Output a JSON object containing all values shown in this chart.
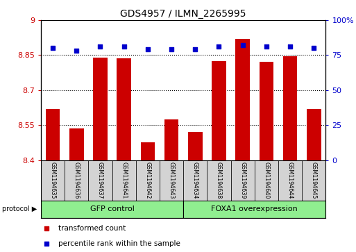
{
  "title": "GDS4957 / ILMN_2265995",
  "samples": [
    "GSM1194635",
    "GSM1194636",
    "GSM1194637",
    "GSM1194641",
    "GSM1194642",
    "GSM1194643",
    "GSM1194634",
    "GSM1194638",
    "GSM1194639",
    "GSM1194640",
    "GSM1194644",
    "GSM1194645"
  ],
  "bar_values": [
    8.62,
    8.535,
    8.84,
    8.835,
    8.475,
    8.575,
    8.52,
    8.825,
    8.92,
    8.82,
    8.845,
    8.62
  ],
  "percentile_values": [
    80,
    78,
    81,
    81,
    79,
    79,
    79,
    81,
    82,
    81,
    81,
    80
  ],
  "bar_color": "#cc0000",
  "percentile_color": "#0000cc",
  "ylim_left": [
    8.4,
    9.0
  ],
  "ylim_right": [
    0,
    100
  ],
  "yticks_left": [
    8.4,
    8.55,
    8.7,
    8.85,
    9.0
  ],
  "yticks_left_labels": [
    "8.4",
    "8.55",
    "8.7",
    "8.85",
    "9"
  ],
  "yticks_right": [
    0,
    25,
    50,
    75,
    100
  ],
  "yticks_right_labels": [
    "0",
    "25",
    "50",
    "75",
    "100%"
  ],
  "hlines": [
    8.55,
    8.7,
    8.85
  ],
  "group1_label": "GFP control",
  "group2_label": "FOXA1 overexpression",
  "group1_count": 6,
  "group2_count": 6,
  "protocol_label": "protocol",
  "legend1_label": "transformed count",
  "legend2_label": "percentile rank within the sample",
  "group_bar_color": "#90ee90",
  "tick_area_color": "#d3d3d3",
  "bar_width": 0.6
}
